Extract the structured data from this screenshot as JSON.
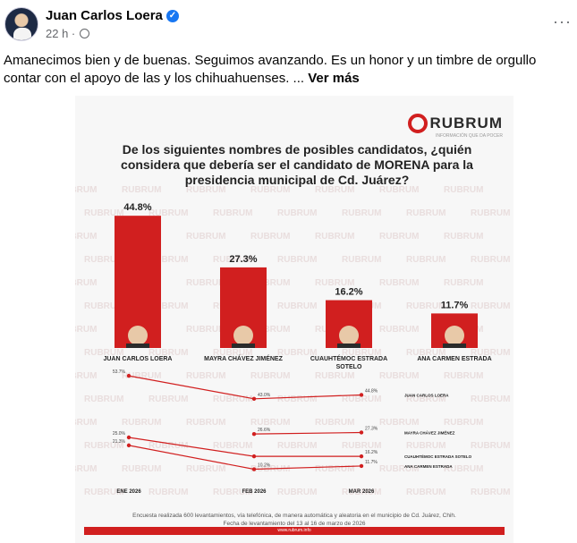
{
  "post": {
    "author": "Juan Carlos Loera",
    "time": "22 h ·",
    "text": "Amanecimos bien y de buenas. Seguimos avanzando. Es un honor y un timbre de orgullo contar con el apoyo de las y los chihuahuenses. ...",
    "see_more": "Ver más",
    "more_glyph": "···",
    "verified_glyph": "✓",
    "avatar_icon": "profile-photo",
    "globe_icon": "globe-icon"
  },
  "infographic": {
    "logo_text": "RUBRUM",
    "logo_tagline": "INFORMACIÓN QUE DA POCER",
    "question": "De los siguientes nombres de posibles candidatos, ¿quién considera que debería ser el candidato de MORENA para la presidencia municipal de Cd. Juárez?",
    "watermark_text": "RUBRUM",
    "footer_line1": "Encuesta realizada 600 levantamientos, vía telefónica, de manera automática y aleatoria en el municipio de Cd. Juárez, Chih.",
    "footer_line2": "Fecha de levantamiento del 13 al 16 de marzo de 2026",
    "footer_url": "www.rubrum.info"
  },
  "chart_data": [
    {
      "type": "bar",
      "categories": [
        "JUAN CARLOS LOERA",
        "MAYRA CHÁVEZ JIMÉNEZ",
        "CUAUHTÉMOC ESTRADA SOTELO",
        "ANA CARMEN ESTRADA"
      ],
      "values": [
        44.8,
        27.3,
        16.2,
        11.7
      ],
      "value_labels": [
        "44.8%",
        "27.3%",
        "16.2%",
        "11.7%"
      ],
      "ylim": [
        0,
        50
      ],
      "bar_color": "#d11f1f"
    },
    {
      "type": "line",
      "x": [
        "ENE 2026",
        "FEB 2026",
        "MAR 2026"
      ],
      "series": [
        {
          "name": "JUAN CARLOS LOERA",
          "values": [
            53.7,
            43.0,
            44.8
          ],
          "labels": [
            "53.7%",
            "43.0%",
            "44.8%"
          ]
        },
        {
          "name": "MAYRA CHÁVEZ JIMÉNEZ",
          "values": [
            null,
            26.6,
            27.3
          ],
          "labels": [
            "",
            "26.6%",
            "27.3%"
          ]
        },
        {
          "name": "CUAUHTÉMOC ESTRADA SOTELO",
          "values": [
            25.0,
            16.2,
            16.2
          ],
          "labels": [
            "25.0%",
            "",
            "16.2%"
          ]
        },
        {
          "name": "ANA CARMEN ESTRADA",
          "values": [
            21.3,
            10.2,
            11.7
          ],
          "labels": [
            "21.3%",
            "10.2%",
            "11.7%"
          ]
        }
      ],
      "line_color": "#d11f1f"
    }
  ]
}
